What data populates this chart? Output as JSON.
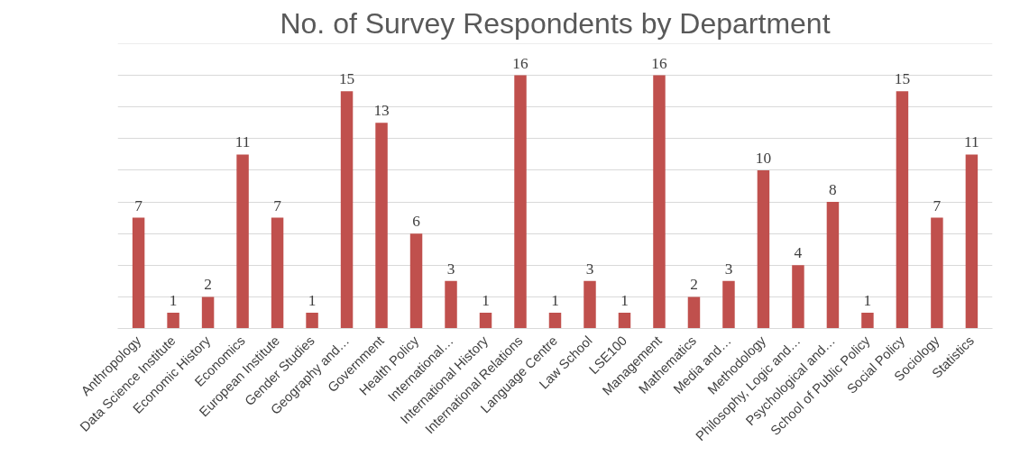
{
  "chart_data": {
    "type": "bar",
    "title": "No. of Survey Respondents by Department",
    "categories": [
      "Anthropology",
      "Data Science Institute",
      "Economic History",
      "Economics",
      "European Institute",
      "Gender Studies",
      "Geography and…",
      "Government",
      "Health Policy",
      "International…",
      "International History",
      "International Relations",
      "Language Centre",
      "Law School",
      "LSE100",
      "Management",
      "Mathematics",
      "Media and…",
      "Methodology",
      "Philosophy, Logic and…",
      "Psychological and…",
      "School of Public Policy",
      "Social Policy",
      "Sociology",
      "Statistics"
    ],
    "values": [
      7,
      1,
      2,
      11,
      7,
      1,
      15,
      13,
      6,
      3,
      1,
      16,
      1,
      3,
      1,
      16,
      2,
      3,
      10,
      4,
      8,
      1,
      15,
      7,
      11
    ],
    "color": "#c0504d",
    "data_labels": true,
    "grid": "y",
    "tick_labels": "x",
    "ylim": [
      0,
      18
    ],
    "yticks": [
      {
        "value": 0,
        "label": null
      },
      {
        "value": 2,
        "label": null
      },
      {
        "value": 4,
        "label": null
      },
      {
        "value": 6,
        "label": null
      },
      {
        "value": 8,
        "label": null
      },
      {
        "value": 10,
        "label": null
      },
      {
        "value": 12,
        "label": null
      },
      {
        "value": 14,
        "label": null
      },
      {
        "value": 16,
        "label": null
      },
      {
        "value": 18,
        "label": null
      }
    ]
  }
}
